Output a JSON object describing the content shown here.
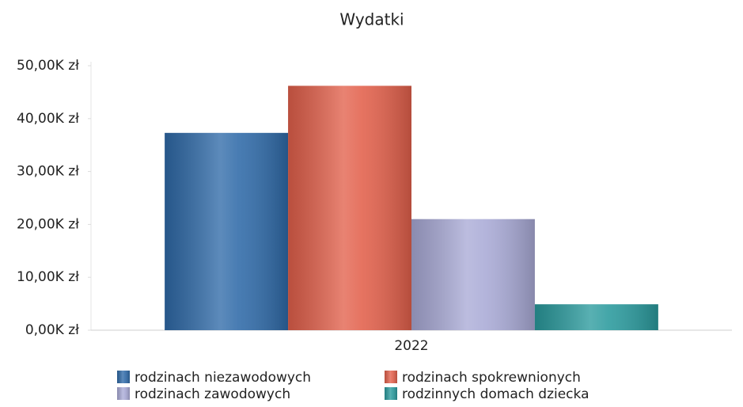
{
  "chart_data": {
    "type": "bar",
    "title": "Wydatki",
    "categories": [
      "2022"
    ],
    "series": [
      {
        "name": "rodzinach niezawodowych",
        "color": "#2f6aa8",
        "values": [
          37300
        ]
      },
      {
        "name": "rodzinach spokrewnionych",
        "color": "#e2604b",
        "values": [
          46200
        ]
      },
      {
        "name": "rodzinach zawodowych",
        "color": "#a9aad6",
        "values": [
          21000
        ]
      },
      {
        "name": "rodzinnych domach dziecka",
        "color": "#2a9a9d",
        "values": [
          4900
        ]
      }
    ],
    "ylim": [
      0,
      50000
    ],
    "yticks": [
      {
        "value": 0,
        "label": "0,00K zł"
      },
      {
        "value": 10000,
        "label": "10,00K zł"
      },
      {
        "value": 20000,
        "label": "20,00K zł"
      },
      {
        "value": 30000,
        "label": "30,00K zł"
      },
      {
        "value": 40000,
        "label": "40,00K zł"
      },
      {
        "value": 50000,
        "label": "50,00K zł"
      }
    ],
    "grid": false,
    "legend": "bottom"
  }
}
